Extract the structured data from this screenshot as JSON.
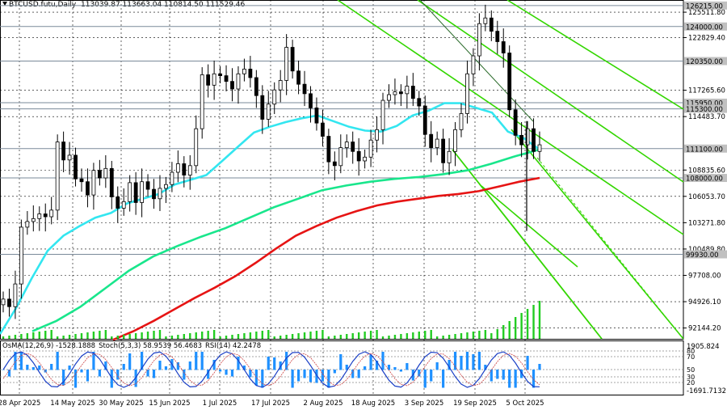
{
  "header": {
    "symbol": "BTCUSD.futu,Daily",
    "ohlc": "113039.87 113663.04 110814.50 111529.46"
  },
  "indicators": {
    "osma": "OsMA(12,26,9) -1528.1888",
    "stoch": "Stoch(5,3,3) 58.9539 56.4683",
    "rsi": "RSI(14) 42.2478"
  },
  "colors": {
    "candle": "#000000",
    "ema_fast": "#33e6f0",
    "ema_mid": "#19e68c",
    "ema_slow": "#e61414",
    "channel": "#33d600",
    "grid": "#000000",
    "level_line": "#7a8a9a",
    "histogram": "#1e90ff",
    "stoch_main": "#1a3fc6",
    "stoch_signal": "#c44",
    "price_label_bg": "#c0c0c0"
  },
  "chart_data": {
    "type": "line",
    "title": "BTCUSD.futu,Daily",
    "price_range": [
      91000,
      126800
    ],
    "y_ticks": [
      "125511.80",
      "122829.40",
      "117265.60",
      "114483.70",
      "108835.60",
      "106053.70",
      "103271.80",
      "100489.80",
      "97708.00",
      "94926.10",
      "92144.20"
    ],
    "x_labels": [
      "28 Apr 2025",
      "14 May 2025",
      "30 May 2025",
      "15 Jun 2025",
      "1 Jul 2025",
      "17 Jul 2025",
      "2 Aug 2025",
      "18 Aug 2025",
      "3 Sep 2025",
      "19 Sep 2025",
      "5 Oct 2025"
    ],
    "levels": [
      {
        "value": 126215.0,
        "label": "126215.00"
      },
      {
        "value": 124000.0,
        "label": "124000.00"
      },
      {
        "value": 120350.0,
        "label": "120350.00"
      },
      {
        "value": 115950.0,
        "label": "115950.00"
      },
      {
        "value": 115300.0,
        "label": "115300.00"
      },
      {
        "value": 111100.0,
        "label": "111100.00"
      },
      {
        "value": 108000.0,
        "label": "108000.00"
      },
      {
        "value": 99930.0,
        "label": "99930.00"
      }
    ],
    "price_close_series": [
      95200,
      94400,
      96800,
      102800,
      103400,
      103700,
      104200,
      103900,
      104600,
      111800,
      109900,
      110400,
      107900,
      107600,
      106200,
      108800,
      108000,
      109000,
      106000,
      104800,
      105500,
      107500,
      105400,
      107600,
      106800,
      105800,
      106900,
      107300,
      108600,
      109500,
      108300,
      109300,
      113200,
      118900,
      117800,
      119000,
      118800,
      118200,
      117400,
      119000,
      119500,
      118600,
      116700,
      114200,
      115800,
      117300,
      118300,
      121800,
      119300,
      117900,
      116900,
      115400,
      113800,
      112400,
      109700,
      109300,
      111200,
      111800,
      110800,
      109800,
      110200,
      112000,
      113100,
      116200,
      116800,
      117100,
      116900,
      117700,
      116400,
      115600,
      112600,
      111200,
      112100,
      109600,
      110800,
      113100,
      114800,
      119000,
      120900,
      124300,
      124900,
      123500,
      122400,
      121200,
      115200,
      112500,
      111500,
      113200,
      110800,
      111500
    ],
    "series": [
      {
        "name": "EMA fast",
        "values": [
          91500,
          94200,
          97400,
          100300,
          101900,
          102900,
          103800,
          104300,
          105300,
          105800,
          106300,
          107300,
          107800,
          108300,
          109800,
          111300,
          112800,
          113400,
          113900,
          114300,
          114600,
          114000,
          113400,
          113000,
          112900,
          113500,
          114600,
          115100,
          115900,
          115900,
          115400,
          114900,
          112900,
          112200,
          111000
        ]
      },
      {
        "name": "EMA mid",
        "values": [
          91800,
          92900,
          94400,
          96300,
          98200,
          99700,
          100800,
          101800,
          102700,
          103800,
          104900,
          105800,
          106700,
          107200,
          107600,
          107900,
          108100,
          108400,
          108800,
          109500,
          110300,
          111000
        ]
      },
      {
        "name": "EMA slow",
        "values": [
          90900,
          91800,
          92900,
          94100,
          95300,
          96400,
          97600,
          99000,
          100500,
          101900,
          102900,
          103800,
          104500,
          105100,
          105500,
          105800,
          106100,
          106300,
          106600,
          107100,
          107600,
          108000
        ]
      }
    ]
  }
}
